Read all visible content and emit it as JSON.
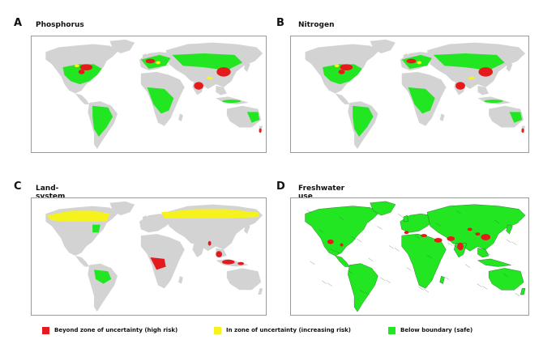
{
  "panels": [
    {
      "letter": "A",
      "title": "Phosphorus",
      "style": "nutrient"
    },
    {
      "letter": "B",
      "title": "Nitrogen",
      "style": "nutrient"
    },
    {
      "letter": "C",
      "title": "Land-system change",
      "style": "land"
    },
    {
      "letter": "D",
      "title": "Freshwater use",
      "style": "water"
    }
  ],
  "legend": [
    {
      "label": "Beyond zone of uncertainty (high risk)",
      "color": "#e41a1c"
    },
    {
      "label": "In zone of uncertainty (increasing risk)",
      "color": "#f5f21e"
    },
    {
      "label": "Below boundary (safe)",
      "color": "#22e622"
    }
  ],
  "colors": {
    "land_base": "#d3d3d3",
    "safe": "#22e622",
    "uncertain": "#f5f21e",
    "high_risk": "#e41a1c",
    "country_border": "#2a5a2a"
  }
}
